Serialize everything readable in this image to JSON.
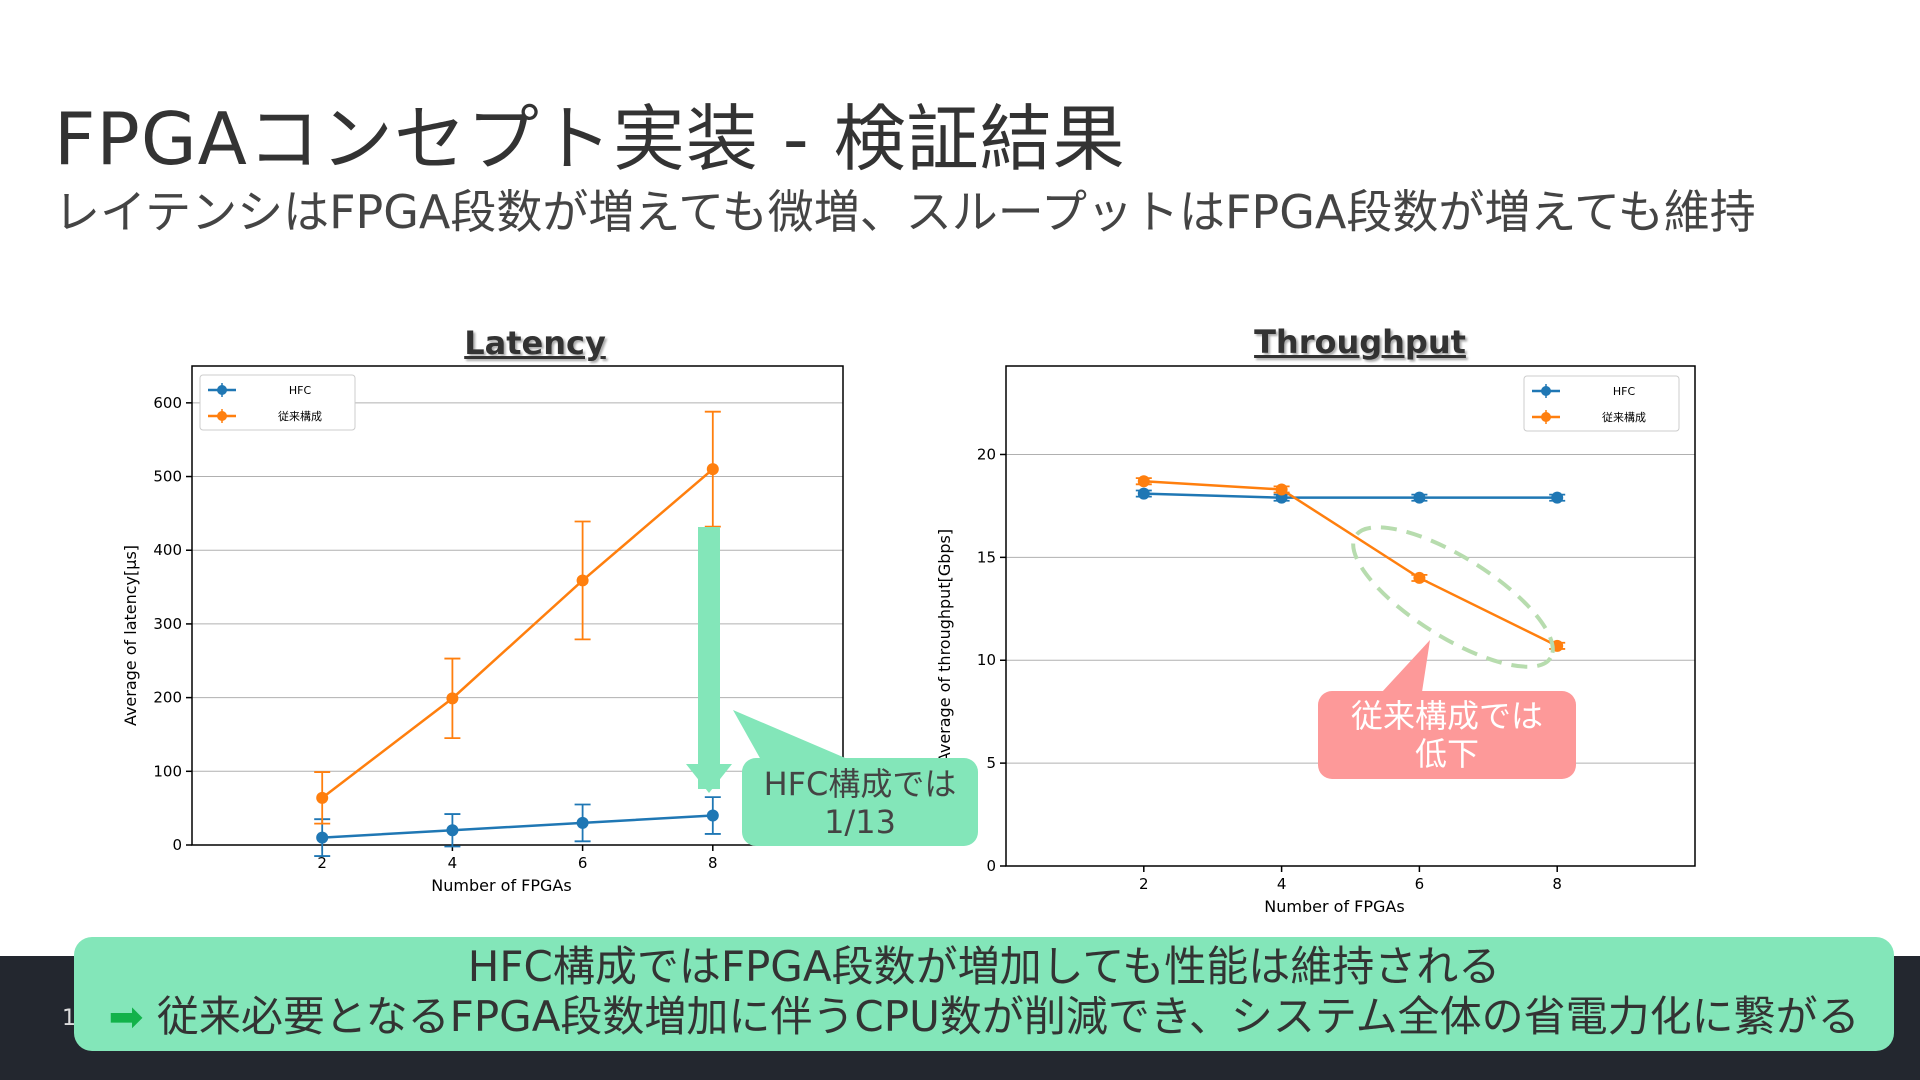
{
  "slide": {
    "title": "FPGAコンセプト実装 - 検証結果",
    "subtitle": "レイテンシはFPGA段数が増えても微増、スループットはFPGA段数が増えても維持",
    "page_number": "1",
    "summary_line1": "HFC構成ではFPGA段数が増加しても性能は維持される",
    "summary_arrow": "➡",
    "summary_line2": "従来必要となるFPGA段数増加に伴うCPU数が削減でき、システム全体の省電力化に繋がる",
    "callout_latency_1": "HFC構成では",
    "callout_latency_2": "1/13",
    "callout_throughput_1": "従来構成では",
    "callout_throughput_2": "低下",
    "colors": {
      "hfc": "#1f77b4",
      "conventional": "#ff7f0e",
      "callout_green": "#83e6b9",
      "callout_red": "#fd9999"
    }
  },
  "chart_data": [
    {
      "type": "line",
      "title": "Latency",
      "xlabel": "Number of FPGAs",
      "ylabel": "Average of latency[μs]",
      "x": [
        2,
        4,
        6,
        8
      ],
      "xticks": [
        "2",
        "4",
        "6",
        "8"
      ],
      "yticks": [
        "0",
        "100",
        "200",
        "300",
        "400",
        "500",
        "600"
      ],
      "ylim": [
        0,
        650
      ],
      "grid": "horizontal",
      "legend": "top-left",
      "series": [
        {
          "name": "HFC",
          "values": [
            10,
            20,
            30,
            40
          ],
          "err": [
            25,
            22,
            25,
            25
          ]
        },
        {
          "name": "従来構成",
          "values": [
            64,
            199,
            359,
            510
          ],
          "err": [
            35,
            54,
            80,
            78
          ]
        }
      ]
    },
    {
      "type": "line",
      "title": "Throughput",
      "xlabel": "Number of FPGAs",
      "ylabel": "Average of throughput[Gbps]",
      "x": [
        2,
        4,
        6,
        8
      ],
      "xticks": [
        "2",
        "4",
        "6",
        "8"
      ],
      "yticks": [
        "0",
        "5",
        "10",
        "15",
        "20"
      ],
      "ylim": [
        0,
        24.3
      ],
      "grid": "horizontal",
      "legend": "top-right",
      "series": [
        {
          "name": "HFC",
          "values": [
            18.1,
            17.9,
            17.9,
            17.9
          ],
          "err": [
            0.15,
            0.15,
            0.15,
            0.15
          ]
        },
        {
          "name": "従来構成",
          "values": [
            18.7,
            18.3,
            14.0,
            10.7
          ],
          "err": [
            0.15,
            0.15,
            0.15,
            0.15
          ]
        }
      ]
    }
  ]
}
